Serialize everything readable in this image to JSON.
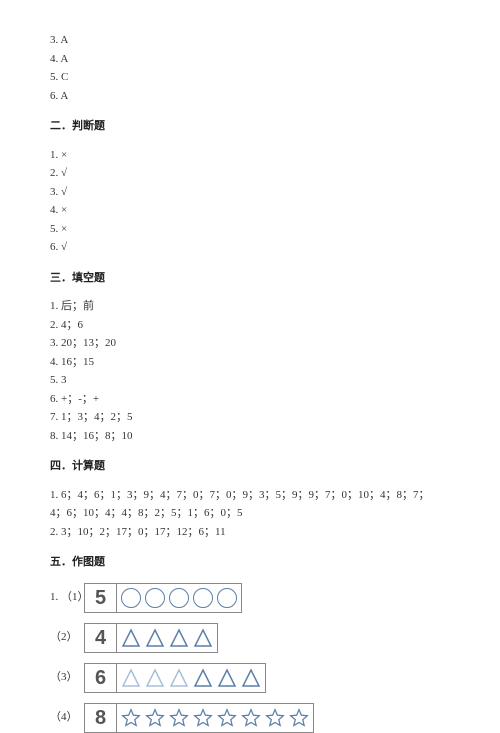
{
  "section1": {
    "answers": [
      {
        "num": "3.",
        "val": "A"
      },
      {
        "num": "4.",
        "val": "A"
      },
      {
        "num": "5.",
        "val": "C"
      },
      {
        "num": "6.",
        "val": "A"
      }
    ]
  },
  "section2": {
    "heading": "二．判断题",
    "answers": [
      {
        "num": "1.",
        "val": "×"
      },
      {
        "num": "2.",
        "val": "√"
      },
      {
        "num": "3.",
        "val": "√"
      },
      {
        "num": "4.",
        "val": "×"
      },
      {
        "num": "5.",
        "val": "×"
      },
      {
        "num": "6.",
        "val": "√"
      }
    ]
  },
  "section3": {
    "heading": "三．填空题",
    "answers": [
      "1. 后；前",
      "2. 4；6",
      "3. 20；13；20",
      "4. 16；15",
      "5. 3",
      "6. +；-；+",
      "7. 1；3；4；2；5",
      "8. 14；16；8；10"
    ]
  },
  "section4": {
    "heading": "四．计算题",
    "answers": [
      "1. 6；4；6；1；3；9；4；7；0；7；0；9；3；5；9；9；7；0；10；4；8；7；",
      "4；6；10；4；4；8；2；5；1；6；0；5",
      "2. 3；10；2；17；0；17；12；6；11"
    ]
  },
  "section5": {
    "heading": "五．作图题",
    "rows": [
      {
        "label": "1. （1）",
        "num": "5",
        "shape": "circle",
        "count": 5,
        "filled_count": 0
      },
      {
        "label": "（2）",
        "num": "4",
        "shape": "triangle",
        "count": 4,
        "filled_count": 0
      },
      {
        "label": "（3）",
        "num": "6",
        "shape": "triangle",
        "count": 6,
        "filled_count": 3
      },
      {
        "label": "（4）",
        "num": "8",
        "shape": "star",
        "count": 8,
        "filled_count": 0
      }
    ]
  },
  "colors": {
    "text": "#333333",
    "border": "#888888",
    "shape_stroke": "#5b7ea8",
    "shape_stroke_light": "#a8c0d8",
    "num_color": "#555555",
    "background": "#ffffff"
  }
}
